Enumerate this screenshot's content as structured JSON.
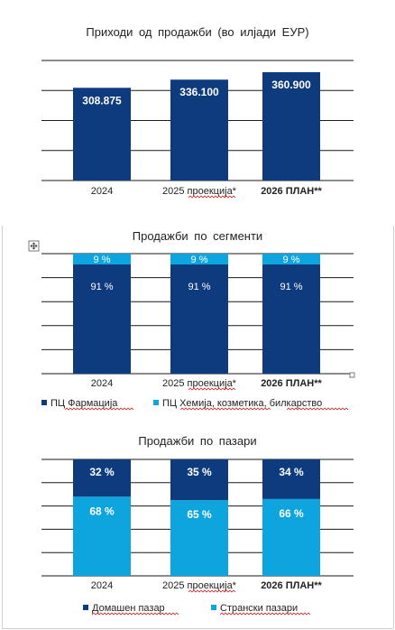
{
  "colors": {
    "dark_blue": "#0d3b7d",
    "light_blue": "#0ea4de",
    "grid": "#1a1a1a"
  },
  "chart_data": [
    {
      "type": "bar",
      "title": "Приходи  од  продажби  (во  илјади  ЕУР)",
      "categories": [
        "2024",
        "2025 проекција*",
        "2026 ПЛАН**"
      ],
      "values": [
        308.875,
        336.1,
        360.9
      ],
      "value_labels": [
        "308.875",
        "336.100",
        "360.900"
      ],
      "ylim": [
        0,
        400
      ],
      "grid": true,
      "legend": null
    },
    {
      "type": "bar",
      "stacked": true,
      "title": "Продажби  по  сегменти",
      "categories": [
        "2024",
        "2025 проекција*",
        "2026 ПЛАН**"
      ],
      "series": [
        {
          "name": "ПЦ Фармација",
          "values": [
            91,
            91,
            91
          ],
          "labels": [
            "91 %",
            "91 %",
            "91 %"
          ]
        },
        {
          "name": "ПЦ Хемија, козметика, билкарство",
          "values": [
            9,
            9,
            9
          ],
          "labels": [
            "9 %",
            "9 %",
            "9 %"
          ]
        }
      ],
      "ylim": [
        0,
        100
      ],
      "grid": true,
      "legend": "bottom"
    },
    {
      "type": "bar",
      "stacked": true,
      "title": "Продажби  по  пазари",
      "categories": [
        "2024",
        "2025 проекција*",
        "2026 ПЛАН**"
      ],
      "series": [
        {
          "name": "Странски пазари",
          "values": [
            68,
            65,
            66
          ],
          "labels": [
            "68 %",
            "65 %",
            "66 %"
          ]
        },
        {
          "name": "Домашен пазар",
          "values": [
            32,
            35,
            34
          ],
          "labels": [
            "32 %",
            "35 %",
            "34 %"
          ]
        }
      ],
      "ylim": [
        0,
        100
      ],
      "grid": true,
      "legend": "bottom"
    }
  ]
}
